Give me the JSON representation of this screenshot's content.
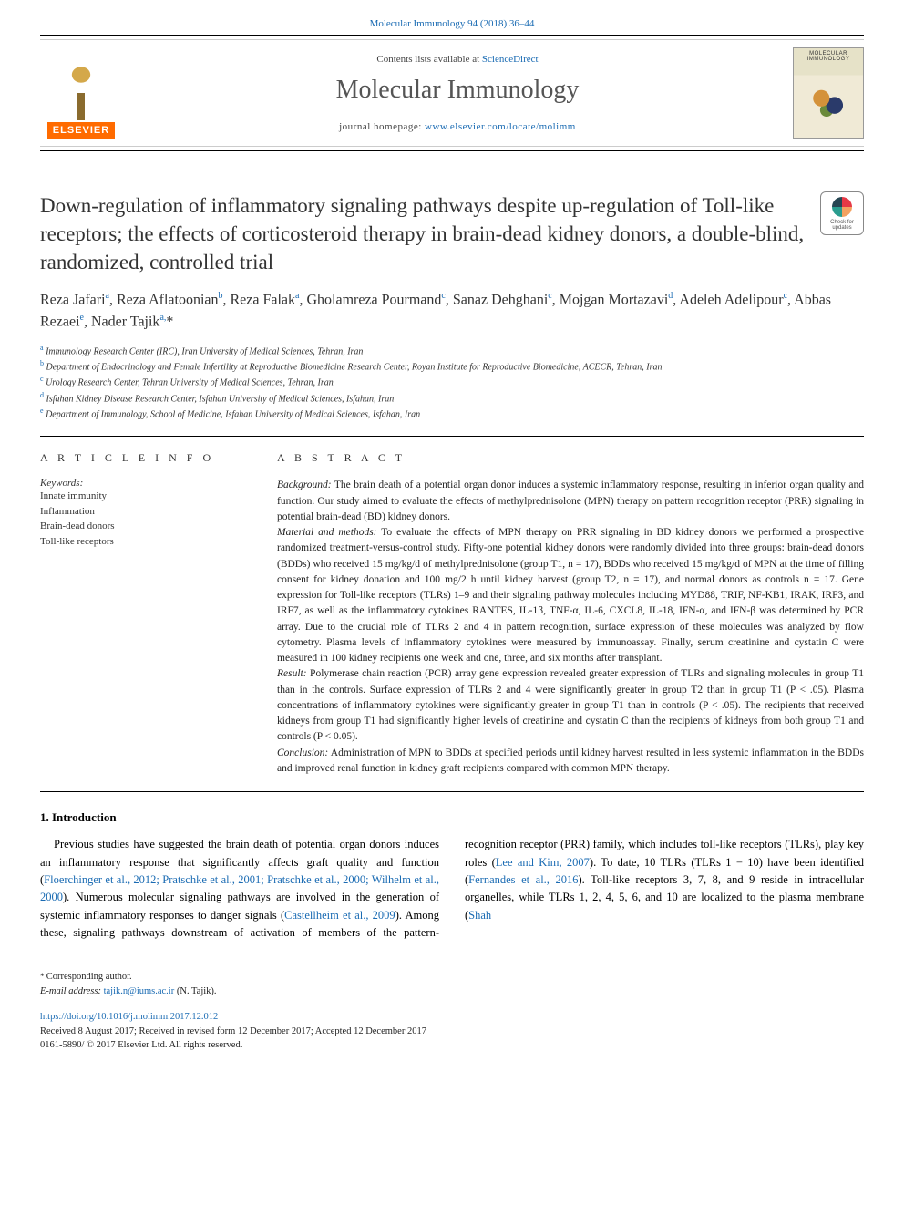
{
  "journal_ref": "Molecular Immunology 94 (2018) 36–44",
  "header": {
    "contents_prefix": "Contents lists available at ",
    "contents_link": "ScienceDirect",
    "journal_name": "Molecular Immunology",
    "homepage_prefix": "journal homepage: ",
    "homepage_url": "www.elsevier.com/locate/molimm",
    "elsevier_label": "ELSEVIER",
    "cover_title": "MOLECULAR IMMUNOLOGY"
  },
  "check_updates": {
    "line1": "Check for",
    "line2": "updates"
  },
  "article": {
    "title": "Down-regulation of inflammatory signaling pathways despite up-regulation of Toll-like receptors; the effects of corticosteroid therapy in brain-dead kidney donors, a double-blind, randomized, controlled trial",
    "authors_html": "Reza Jafari<sup>a</sup>, Reza Aflatoonian<sup>b</sup>, Reza Falak<sup>a</sup>, Gholamreza Pourmand<sup>c</sup>, Sanaz Dehghani<sup>c</sup>, Mojgan Mortazavi<sup>d</sup>, Adeleh Adelipour<sup>c</sup>, Abbas Rezaei<sup>e</sup>, Nader Tajik<sup>a,</sup>*",
    "affiliations": [
      {
        "sup": "a",
        "text": "Immunology Research Center (IRC), Iran University of Medical Sciences, Tehran, Iran"
      },
      {
        "sup": "b",
        "text": "Department of Endocrinology and Female Infertility at Reproductive Biomedicine Research Center, Royan Institute for Reproductive Biomedicine, ACECR, Tehran, Iran"
      },
      {
        "sup": "c",
        "text": "Urology Research Center, Tehran University of Medical Sciences, Tehran, Iran"
      },
      {
        "sup": "d",
        "text": "Isfahan Kidney Disease Research Center, Isfahan University of Medical Sciences, Isfahan, Iran"
      },
      {
        "sup": "e",
        "text": "Department of Immunology, School of Medicine, Isfahan University of Medical Sciences, Isfahan, Iran"
      }
    ]
  },
  "article_info": {
    "heading": "A R T I C L E  I N F O",
    "keywords_label": "Keywords:",
    "keywords": [
      "Innate immunity",
      "Inflammation",
      "Brain-dead donors",
      "Toll-like receptors"
    ]
  },
  "abstract": {
    "heading": "A B S T R A C T",
    "sections": [
      {
        "head": "Background:",
        "text": " The brain death of a potential organ donor induces a systemic inflammatory response, resulting in inferior organ quality and function. Our study aimed to evaluate the effects of methylprednisolone (MPN) therapy on pattern recognition receptor (PRR) signaling in potential brain-dead (BD) kidney donors."
      },
      {
        "head": "Material and methods:",
        "text": " To evaluate the effects of MPN therapy on PRR signaling in BD kidney donors we performed a prospective randomized treatment-versus-control study. Fifty-one potential kidney donors were randomly divided into three groups: brain-dead donors (BDDs) who received 15 mg/kg/d of methylprednisolone (group T1, n = 17), BDDs who received 15 mg/kg/d of MPN at the time of filling consent for kidney donation and 100 mg/2 h until kidney harvest (group T2, n = 17), and normal donors as controls n = 17. Gene expression for Toll-like receptors (TLRs) 1–9 and their signaling pathway molecules including MYD88, TRIF, NF-KB1, IRAK, IRF3, and IRF7, as well as the inflammatory cytokines RANTES, IL-1β, TNF-α, IL-6, CXCL8, IL-18, IFN-α, and IFN-β was determined by PCR array. Due to the crucial role of TLRs 2 and 4 in pattern recognition, surface expression of these molecules was analyzed by flow cytometry. Plasma levels of inflammatory cytokines were measured by immunoassay. Finally, serum creatinine and cystatin C were measured in 100 kidney recipients one week and one, three, and six months after transplant."
      },
      {
        "head": "Result:",
        "text": " Polymerase chain reaction (PCR) array gene expression revealed greater expression of TLRs and signaling molecules in group T1 than in the controls. Surface expression of TLRs 2 and 4 were significantly greater in group T2 than in group T1 (P < .05). Plasma concentrations of inflammatory cytokines were significantly greater in group T1 than in controls (P < .05). The recipients that received kidneys from group T1 had significantly higher levels of creatinine and cystatin C than the recipients of kidneys from both group T1 and controls (P < 0.05)."
      },
      {
        "head": "Conclusion:",
        "text": " Administration of MPN to BDDs at specified periods until kidney harvest resulted in less systemic inflammation in the BDDs and improved renal function in kidney graft recipients compared with common MPN therapy."
      }
    ]
  },
  "introduction": {
    "heading": "1. Introduction",
    "para1_pre": "Previous studies have suggested the brain death of potential organ donors induces an inflammatory response that significantly affects graft quality and function (",
    "para1_ref": "Floerchinger et al., 2012; Pratschke et al., 2001; Pratschke et al., 2000; Wilhelm et al., 2000",
    "para1_post": "). Numerous molecular signaling pathways are involved in the generation of systemic",
    "para2_a": "inflammatory responses to danger signals (",
    "para2_ref1": "Castellheim et al., 2009",
    "para2_b": "). Among these, signaling pathways downstream of activation of members of the pattern-recognition receptor (PRR) family, which includes toll-like receptors (TLRs), play key roles (",
    "para2_ref2": "Lee and Kim, 2007",
    "para2_c": "). To date, 10 TLRs (TLRs 1 − 10) have been identified (",
    "para2_ref3": "Fernandes et al., 2016",
    "para2_d": "). Toll-like receptors 3, 7, 8, and 9 reside in intracellular organelles, while TLRs 1, 2, 4, 5, 6, and 10 are localized to the plasma membrane (",
    "para2_ref4": "Shah"
  },
  "footer": {
    "corresponding_label": "Corresponding author.",
    "email_label": "E-mail address:",
    "email": "tajik.n@iums.ac.ir",
    "email_name": " (N. Tajik).",
    "doi": "https://doi.org/10.1016/j.molimm.2017.12.012",
    "received": "Received 8 August 2017; Received in revised form 12 December 2017; Accepted 12 December 2017",
    "copyright": "0161-5890/ © 2017 Elsevier Ltd. All rights reserved."
  },
  "colors": {
    "link": "#1a6bb3",
    "text": "#000000",
    "elsevier_orange": "#ff6b00"
  }
}
